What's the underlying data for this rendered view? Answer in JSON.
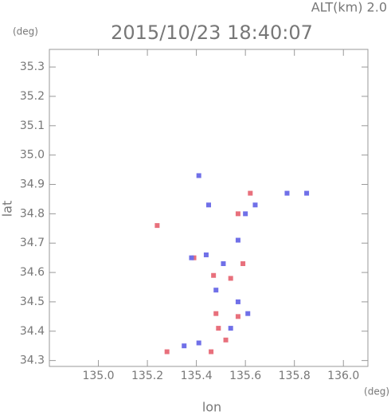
{
  "chart_data": {
    "type": "scatter",
    "title": "2015/10/23 18:40:07",
    "subtitle": "ALT(km) 2.0",
    "y_unit": "(deg)",
    "x_unit": "(deg)",
    "xlabel": "lon",
    "ylabel": "lat",
    "xlim": [
      134.8,
      136.1
    ],
    "ylim": [
      34.28,
      35.36
    ],
    "xticks": [
      {
        "value": 135.0,
        "label": "135.0"
      },
      135.2,
      135.4,
      135.6,
      135.8,
      {
        "value": 136.0,
        "label": "136.0"
      }
    ],
    "yticks": [
      34.3,
      34.4,
      34.5,
      34.6,
      34.7,
      34.8,
      34.9,
      {
        "value": 35.0,
        "label": "35.0"
      },
      35.1,
      35.2,
      35.3
    ],
    "series": [
      {
        "color": "#e8707c",
        "x": [
          135.24,
          135.62,
          135.57,
          135.39,
          135.54,
          135.48,
          135.49,
          135.57,
          135.52,
          135.28,
          135.46,
          135.47,
          135.59
        ],
        "y": [
          34.76,
          34.87,
          34.8,
          34.65,
          34.58,
          34.46,
          34.41,
          34.45,
          34.37,
          34.33,
          34.33,
          34.59,
          34.63
        ]
      },
      {
        "color": "#7070e8",
        "x": [
          135.41,
          135.45,
          135.6,
          135.64,
          135.77,
          135.57,
          135.51,
          135.57,
          135.61,
          135.54,
          135.41,
          135.35,
          135.44,
          135.38,
          135.48,
          135.85
        ],
        "y": [
          34.93,
          34.83,
          34.8,
          34.83,
          34.87,
          34.71,
          34.63,
          34.5,
          34.46,
          34.41,
          34.36,
          34.35,
          34.66,
          34.65,
          34.54,
          34.87
        ]
      }
    ]
  }
}
